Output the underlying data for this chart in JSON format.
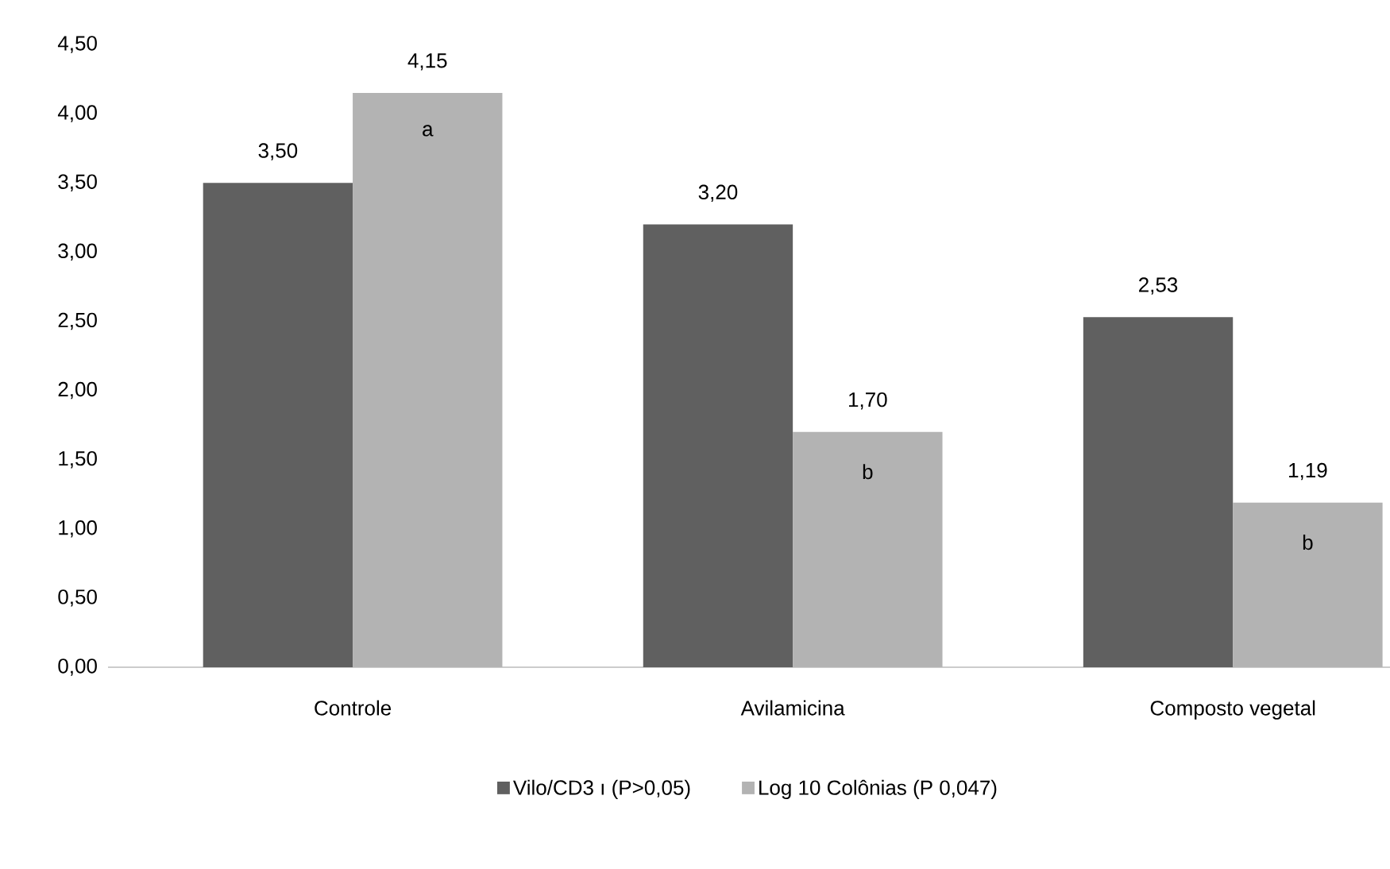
{
  "chart_data": {
    "type": "bar",
    "categories": [
      "Controle",
      "Avilamicina",
      "Composto vegetal"
    ],
    "series": [
      {
        "name": "Vilo/CD3 ı (P>0,05)",
        "color": "#606060",
        "values": [
          3.5,
          3.2,
          2.53
        ],
        "value_labels": [
          "3,50",
          "3,20",
          "2,53"
        ]
      },
      {
        "name": "Log 10 Colônias (P  0,047)",
        "color": "#b3b3b3",
        "values": [
          4.15,
          1.7,
          1.19
        ],
        "value_labels": [
          "4,15",
          "1,70",
          "1,19"
        ]
      }
    ],
    "ylim": [
      0,
      4.5
    ],
    "yticks": [
      {
        "value": 0,
        "label": "0,00"
      },
      {
        "value": 0.5,
        "label": "0,50"
      },
      {
        "value": 1,
        "label": "1,00"
      },
      {
        "value": 1.5,
        "label": "1,50"
      },
      {
        "value": 2,
        "label": "2,00"
      },
      {
        "value": 2.5,
        "label": "2,50"
      },
      {
        "value": 3,
        "label": "3,00"
      },
      {
        "value": 3.5,
        "label": "3,50"
      },
      {
        "value": 4,
        "label": "4,00"
      },
      {
        "value": 4.5,
        "label": "4,50"
      }
    ],
    "annotations": [
      "a",
      "b",
      "b"
    ],
    "grid": false,
    "legend": "bottom"
  }
}
